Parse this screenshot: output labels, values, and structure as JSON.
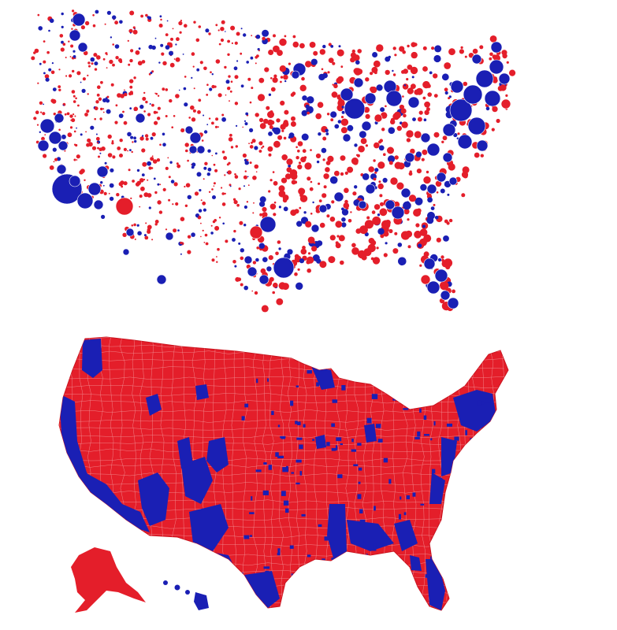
{
  "maps": [
    {
      "id": "county-bubble-map",
      "kind": "proportional-symbol map of U.S. counties (circle size = vote count, colour = winning party)"
    },
    {
      "id": "county-choropleth-map",
      "kind": "choropleth map of U.S. counties coloured by winning party"
    }
  ],
  "colors": {
    "red": "#e41e2a",
    "blue": "#1a1fb4",
    "background": "#ffffff",
    "county_border": "#f4a3a6"
  }
}
